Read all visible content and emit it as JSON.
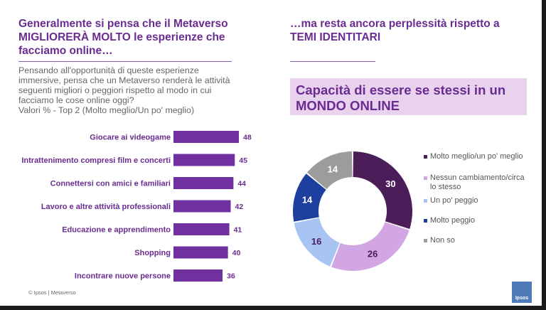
{
  "left": {
    "title": "Generalmente si pensa che il Metaverso MIGLIORERÀ MOLTO le esperienze che facciamo online…",
    "question": "Pensando all'opportunità di queste esperienze immersive, pensa che un Metaverso renderà le attività seguenti migliori o peggiori rispetto al modo in cui facciamo le cose online oggi?",
    "values_note": "Valori % - Top 2 (Molto meglio/Un po' meglio)"
  },
  "right": {
    "title": "…ma resta ancora perplessità rispetto a TEMI IDENTITARI",
    "band_title": "Capacità di essere se stessi in un MONDO ONLINE"
  },
  "footer": "© Ipsos | Metaverso",
  "logo": "Ipsos",
  "colors": {
    "bar": "#7030a0",
    "title": "#6a2c91",
    "band": "#e8d2ee"
  },
  "chart_data": [
    {
      "type": "bar",
      "orientation": "horizontal",
      "categories": [
        "Giocare ai videogame",
        "Intrattenimento compresi film e concerti",
        "Connettersi con amici e familiari",
        "Lavoro e altre attività professionali",
        "Educazione e apprendimento",
        "Shopping",
        "Incontrare nuove persone"
      ],
      "values": [
        48,
        45,
        44,
        42,
        41,
        40,
        36
      ],
      "color": "#7030a0",
      "xlim": [
        0,
        48
      ]
    },
    {
      "type": "pie",
      "donut": true,
      "labels": [
        "Molto meglio/un po' meglio",
        "Nessun cambiamento/circa lo stesso",
        "Un po' peggio",
        "Molto peggio",
        "Non so"
      ],
      "values": [
        30,
        26,
        16,
        14,
        14
      ],
      "colors": [
        "#4b1e59",
        "#d1a6e2",
        "#a7c4f2",
        "#1d3f9e",
        "#9c9c9c"
      ],
      "legend_position": "right"
    }
  ]
}
